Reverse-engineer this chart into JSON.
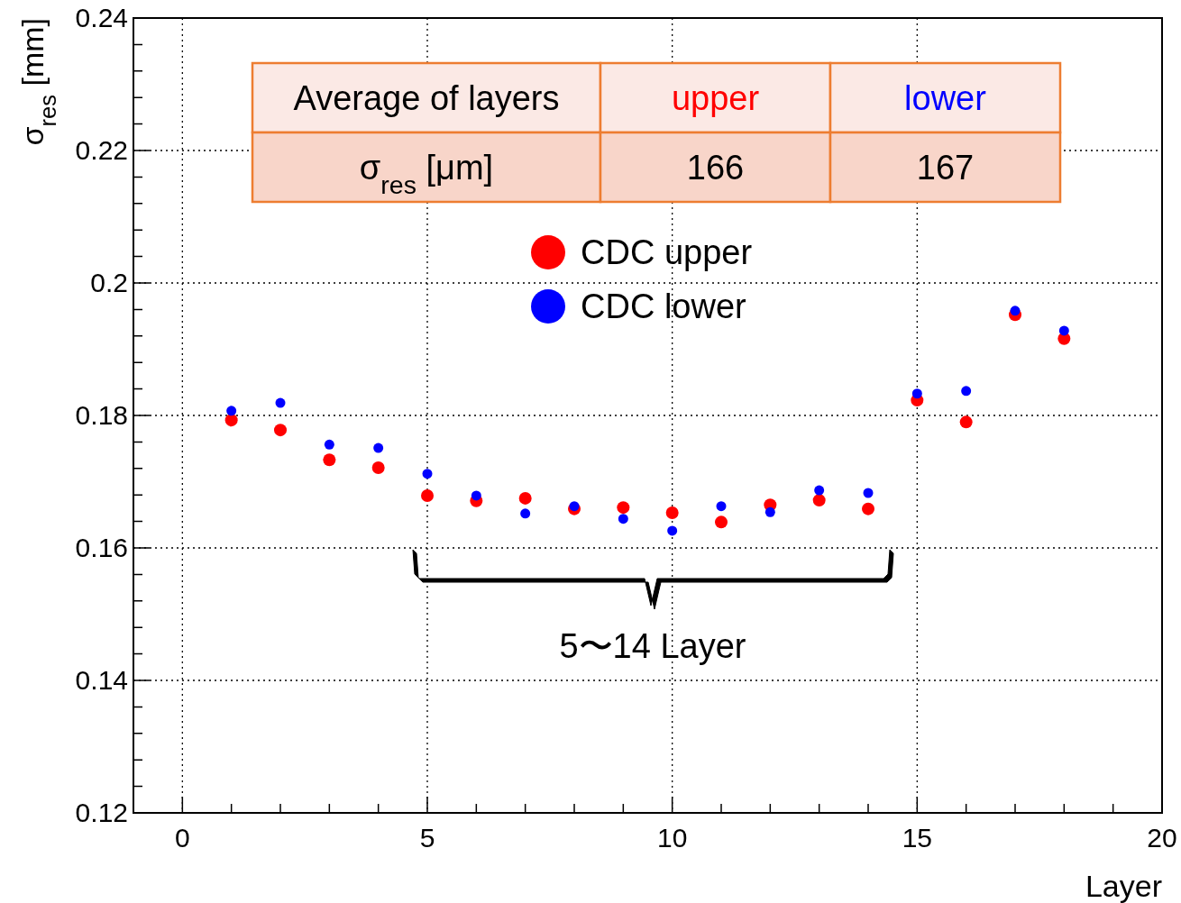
{
  "chart_data": {
    "type": "scatter",
    "xlabel": "Layer",
    "ylabel": "σ$_{res}$ [mm]",
    "x": [
      1,
      2,
      3,
      4,
      5,
      6,
      7,
      8,
      9,
      10,
      11,
      12,
      13,
      14,
      15,
      16,
      17,
      18
    ],
    "series": [
      {
        "name": "CDC upper",
        "color": "#ff0000",
        "values": [
          0.1793,
          0.1778,
          0.1733,
          0.1721,
          0.1679,
          0.1671,
          0.1675,
          0.1659,
          0.1661,
          0.1653,
          0.1639,
          0.1665,
          0.1672,
          0.1659,
          0.1823,
          0.179,
          0.1952,
          0.1916
        ]
      },
      {
        "name": "CDC lower",
        "color": "#0000ff",
        "values": [
          0.1807,
          0.1819,
          0.1756,
          0.1751,
          0.1712,
          0.1679,
          0.1652,
          0.1663,
          0.1644,
          0.1626,
          0.1663,
          0.1654,
          0.1687,
          0.1683,
          0.1833,
          0.1837,
          0.1958,
          0.1928
        ]
      }
    ],
    "xlim": [
      -1,
      20
    ],
    "xticks": [
      0,
      5,
      10,
      15,
      20
    ],
    "ylim": [
      0.12,
      0.24
    ],
    "yticks": [
      0.12,
      0.14,
      0.16,
      0.18,
      0.2,
      0.22,
      0.24
    ],
    "grid": true,
    "legend": "top",
    "marker": "circle",
    "annotations": [
      "Average of layers",
      "upper",
      "lower",
      "σ$_{res}$ [μm]",
      "166",
      "167",
      "5〜14 Layer"
    ]
  }
}
